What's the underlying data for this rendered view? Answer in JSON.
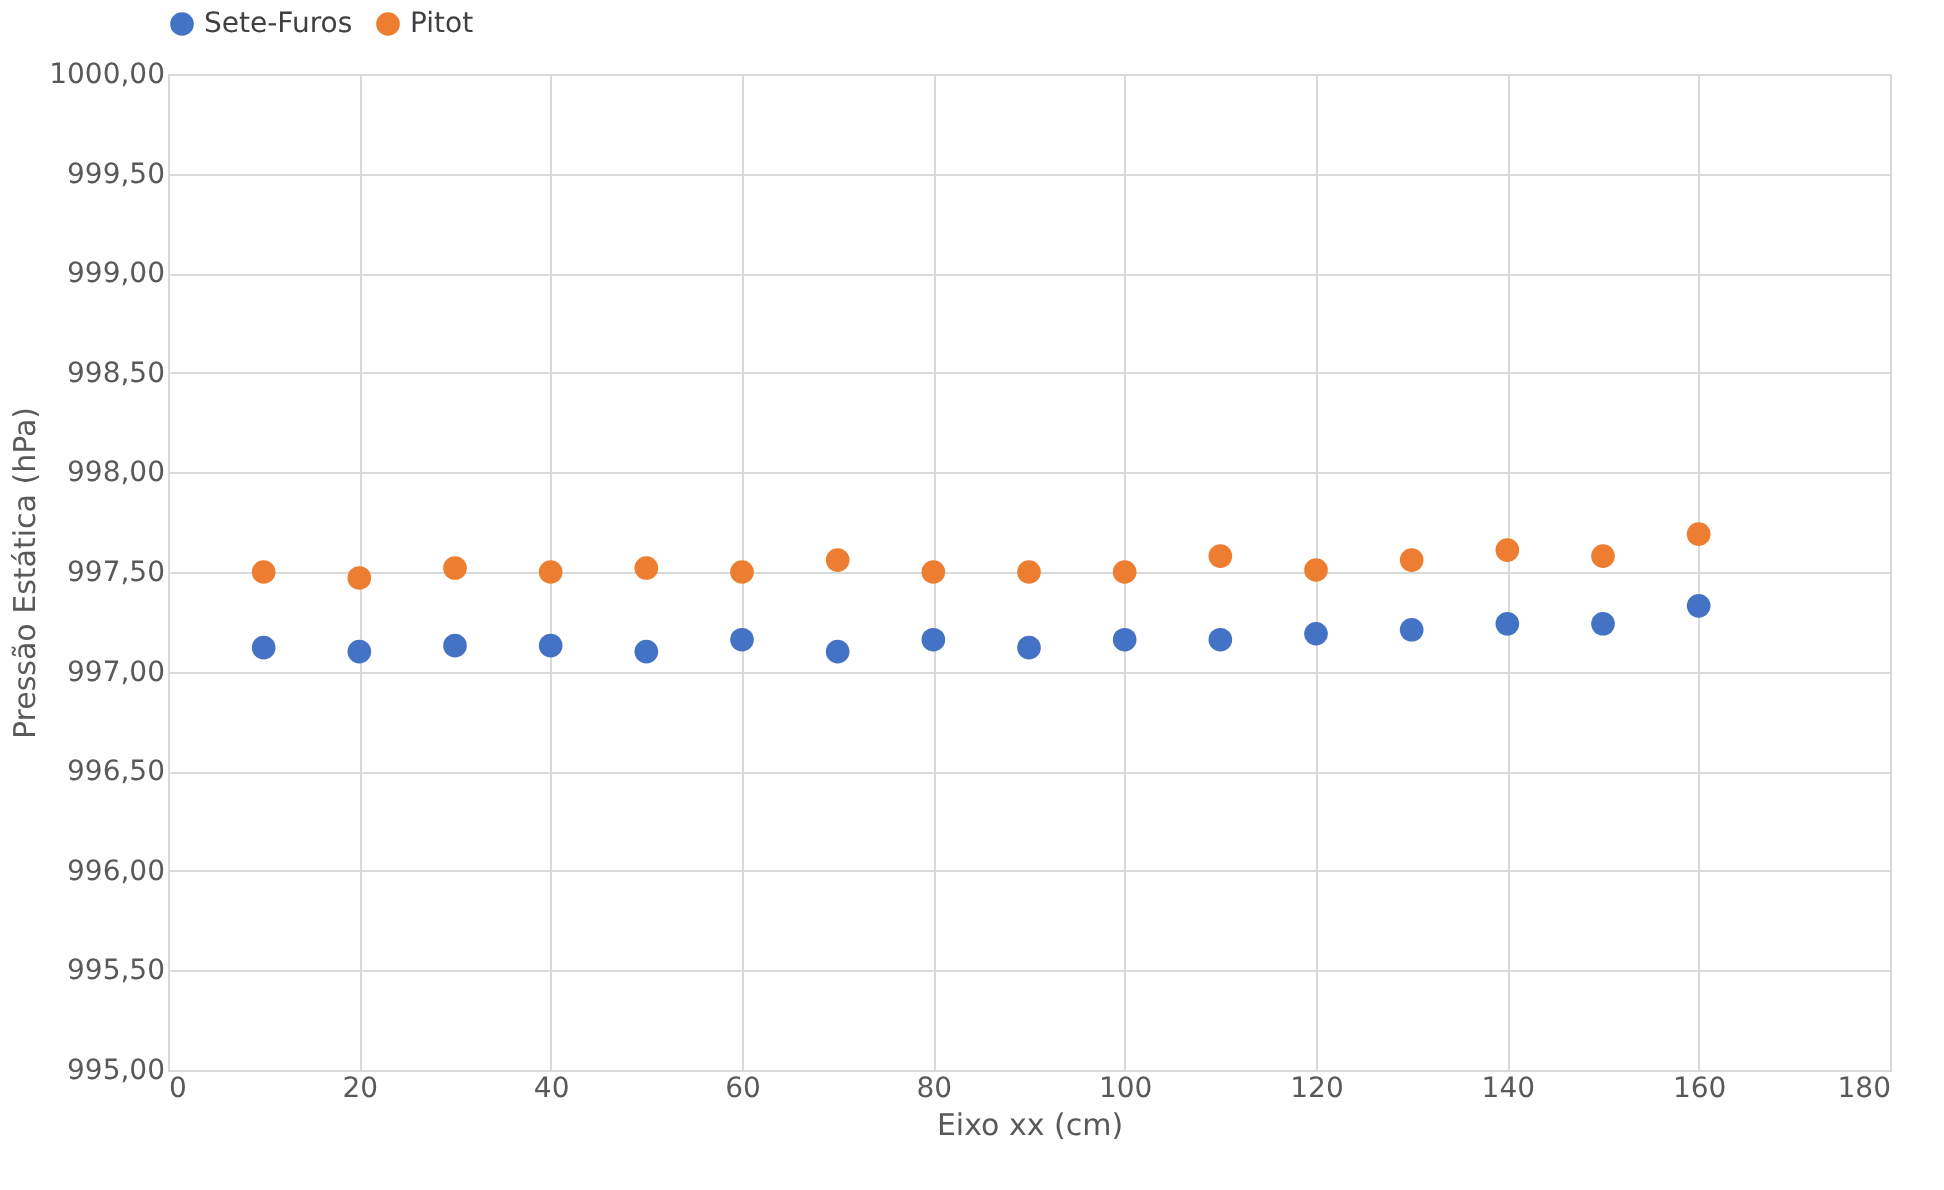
{
  "chart_data": {
    "type": "scatter",
    "xlabel": "Eixo xx (cm)",
    "ylabel": "Pressão Estática (hPa)",
    "x": [
      10,
      20,
      30,
      40,
      50,
      60,
      70,
      80,
      90,
      100,
      110,
      120,
      130,
      140,
      150,
      160
    ],
    "series": [
      {
        "name": "Sete-Furos",
        "color": "#4472c4",
        "values": [
          997.12,
          997.1,
          997.13,
          997.13,
          997.1,
          997.16,
          997.1,
          997.16,
          997.12,
          997.16,
          997.16,
          997.19,
          997.21,
          997.24,
          997.24,
          997.33
        ]
      },
      {
        "name": "Pitot",
        "color": "#ed7d31",
        "values": [
          997.5,
          997.47,
          997.52,
          997.5,
          997.52,
          997.5,
          997.56,
          997.5,
          997.5,
          997.5,
          997.58,
          997.51,
          997.56,
          997.61,
          997.58,
          997.69
        ]
      }
    ],
    "xlim": [
      0,
      180
    ],
    "xticks": [
      0,
      20,
      40,
      60,
      80,
      100,
      120,
      140,
      160,
      180
    ],
    "ylim": [
      995,
      1000
    ],
    "yticks": [
      {
        "value": 995,
        "label": "995,00"
      },
      {
        "value": 995.5,
        "label": "995,50"
      },
      {
        "value": 996,
        "label": "996,00"
      },
      {
        "value": 996.5,
        "label": "996,50"
      },
      {
        "value": 997,
        "label": "997,00"
      },
      {
        "value": 997.5,
        "label": "997,50"
      },
      {
        "value": 998,
        "label": "998,00"
      },
      {
        "value": 998.5,
        "label": "998,50"
      },
      {
        "value": 999,
        "label": "999,00"
      },
      {
        "value": 999.5,
        "label": "999,50"
      },
      {
        "value": 1000,
        "label": "1000,00"
      }
    ],
    "grid": true,
    "legend": "top",
    "marker": "circle"
  }
}
